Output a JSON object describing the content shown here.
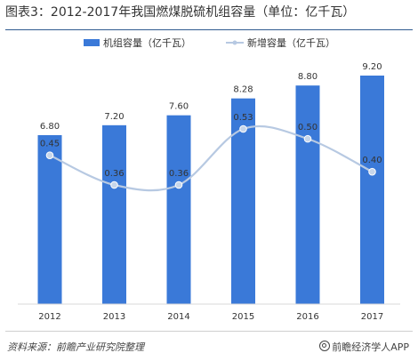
{
  "title": "图表3：2012-2017年我国燃煤脱硫机组容量（单位：亿千瓦）",
  "source": "资料来源：前瞻产业研究院整理",
  "brand": "前瞻经济学人APP",
  "colors": {
    "bar": "#3a79d8",
    "line": "#b7c9e2",
    "marker": "#c7d6ea"
  },
  "chart_data": {
    "type": "bar",
    "categories": [
      "2012",
      "2013",
      "2014",
      "2015",
      "2016",
      "2017"
    ],
    "series": [
      {
        "name": "机组容量（亿千瓦）",
        "type": "bar",
        "values": [
          6.8,
          7.2,
          7.6,
          8.28,
          8.8,
          9.2
        ],
        "labels": [
          "6.80",
          "7.20",
          "7.60",
          "8.28",
          "8.80",
          "9.20"
        ]
      },
      {
        "name": "新增容量（亿千瓦）",
        "type": "line",
        "values": [
          0.45,
          0.36,
          0.36,
          0.53,
          0.5,
          0.4
        ],
        "labels": [
          "0.45",
          "0.36",
          "0.36",
          "0.53",
          "0.50",
          "0.40"
        ]
      }
    ],
    "legend_position": "top-center",
    "grid": false
  }
}
